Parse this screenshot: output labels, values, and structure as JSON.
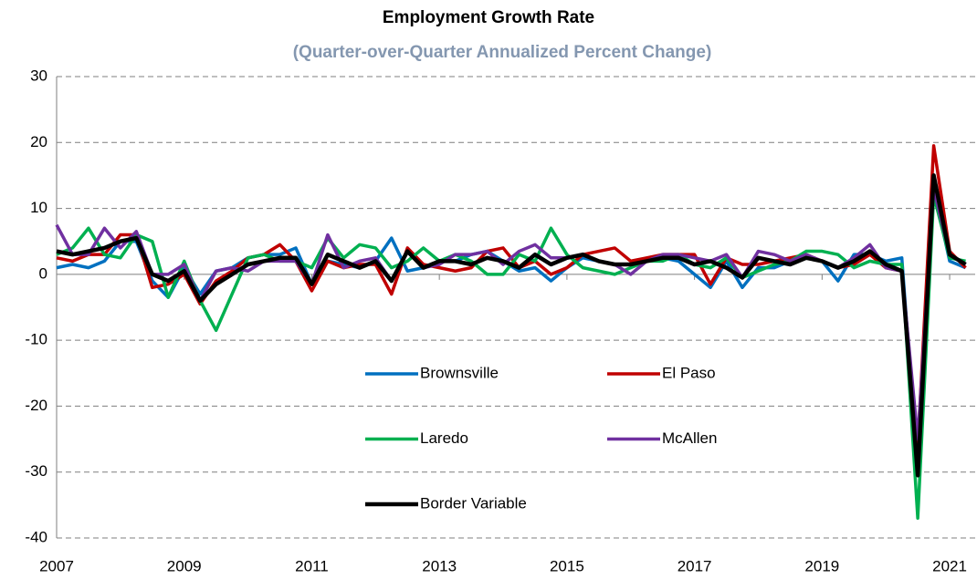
{
  "chart_data": {
    "type": "line",
    "title": "Employment Growth Rate",
    "subtitle": "(Quarter-over-Quarter Annualized Percent Change)",
    "x": [
      2007,
      2007.25,
      2007.5,
      2007.75,
      2008,
      2008.25,
      2008.5,
      2008.75,
      2009,
      2009.25,
      2009.5,
      2009.75,
      2010,
      2010.25,
      2010.5,
      2010.75,
      2011,
      2011.25,
      2011.5,
      2011.75,
      2012,
      2012.25,
      2012.5,
      2012.75,
      2013,
      2013.25,
      2013.5,
      2013.75,
      2014,
      2014.25,
      2014.5,
      2014.75,
      2015,
      2015.25,
      2015.5,
      2015.75,
      2016,
      2016.25,
      2016.5,
      2016.75,
      2017,
      2017.25,
      2017.5,
      2017.75,
      2018,
      2018.25,
      2018.5,
      2018.75,
      2019,
      2019.25,
      2019.5,
      2019.75,
      2020,
      2020.25,
      2020.5,
      2020.75,
      2021,
      2021.25
    ],
    "series": [
      {
        "name": "Brownsville",
        "color": "#0070c0",
        "values": [
          1,
          1.5,
          1,
          2,
          5,
          5,
          -1,
          -3.5,
          1,
          -3,
          0.5,
          1,
          2.5,
          3,
          3,
          4,
          -1.5,
          2,
          1.5,
          1,
          2,
          5.5,
          0.5,
          1,
          2,
          2,
          3,
          3.5,
          2,
          0.5,
          1,
          -1,
          1,
          2.5,
          2,
          1.5,
          1.5,
          2,
          2.5,
          2,
          0,
          -2,
          2,
          -2,
          1,
          1,
          2,
          2.5,
          2,
          -1,
          3,
          3,
          2,
          2.5,
          -30,
          13,
          2,
          1
        ]
      },
      {
        "name": "El Paso",
        "color": "#c00000",
        "values": [
          2.5,
          2,
          3,
          3,
          6,
          6,
          -2,
          -1.5,
          0,
          -4.5,
          -1,
          0.5,
          2.5,
          3,
          4.5,
          2,
          -2.5,
          2,
          1,
          1.5,
          1.5,
          -3,
          4,
          1.5,
          1,
          0.5,
          1,
          3.5,
          4,
          1,
          2,
          0,
          1,
          3,
          3.5,
          4,
          2,
          2.5,
          3,
          3,
          3,
          -1.5,
          2.5,
          1.5,
          1.5,
          2,
          2.5,
          3,
          2,
          1,
          1.5,
          3,
          1,
          0.5,
          -26,
          19.5,
          3.5,
          1
        ]
      },
      {
        "name": "Laredo",
        "color": "#00b050",
        "values": [
          3,
          4,
          7,
          3,
          2.5,
          6,
          5,
          -3.5,
          2,
          -4,
          -8.5,
          -3,
          2.5,
          3,
          2,
          2,
          1,
          5.5,
          2.5,
          4.5,
          4,
          1,
          2,
          4,
          2,
          3,
          2,
          0,
          0,
          3,
          2,
          7,
          3,
          1,
          0.5,
          0,
          1,
          2,
          2,
          3,
          1.5,
          1,
          2.5,
          -0.5,
          0.5,
          1.5,
          2,
          3.5,
          3.5,
          3,
          1,
          2,
          1.5,
          1.5,
          -37,
          12,
          2.5,
          2
        ]
      },
      {
        "name": "McAllen",
        "color": "#7030a0",
        "values": [
          7.5,
          3,
          3,
          7,
          4,
          6.5,
          0,
          0,
          1.5,
          -4,
          0.5,
          1,
          0.5,
          2,
          2,
          2,
          -1.5,
          6,
          1,
          2,
          2.5,
          -1,
          3.5,
          1,
          1.5,
          3,
          3,
          3.5,
          1.5,
          3.5,
          4.5,
          2.5,
          2.5,
          3,
          2,
          1.5,
          0,
          2,
          3,
          3,
          2.5,
          2,
          3,
          -0.5,
          3.5,
          3,
          2,
          3,
          2,
          1,
          2.5,
          4.5,
          1,
          0.5,
          -25,
          13,
          3,
          1.5
        ]
      },
      {
        "name": "Border Variable",
        "color": "#000000",
        "values": [
          3.5,
          3,
          3.5,
          4,
          5,
          5.5,
          0,
          -1,
          0.5,
          -4,
          -1.5,
          0,
          1.5,
          2,
          2.5,
          2.5,
          -1.5,
          3,
          2,
          1,
          2,
          -1,
          3.5,
          1,
          2,
          2,
          1.5,
          2.5,
          2,
          1,
          3,
          1.5,
          2.5,
          3,
          2,
          1.5,
          1.5,
          2,
          2.5,
          2.5,
          1.5,
          2,
          1,
          -0.5,
          2.5,
          2,
          1.5,
          2.5,
          2,
          1,
          2,
          3.5,
          1.5,
          0.5,
          -30.5,
          15,
          3,
          1.5
        ]
      }
    ],
    "xlim": [
      2007,
      2021.4
    ],
    "xticks": [
      2007,
      2009,
      2011,
      2013,
      2015,
      2017,
      2019,
      2021
    ],
    "ylim": [
      -40,
      30
    ],
    "yticks": [
      -40,
      -30,
      -20,
      -10,
      0,
      10,
      20,
      30
    ],
    "grid": true
  }
}
